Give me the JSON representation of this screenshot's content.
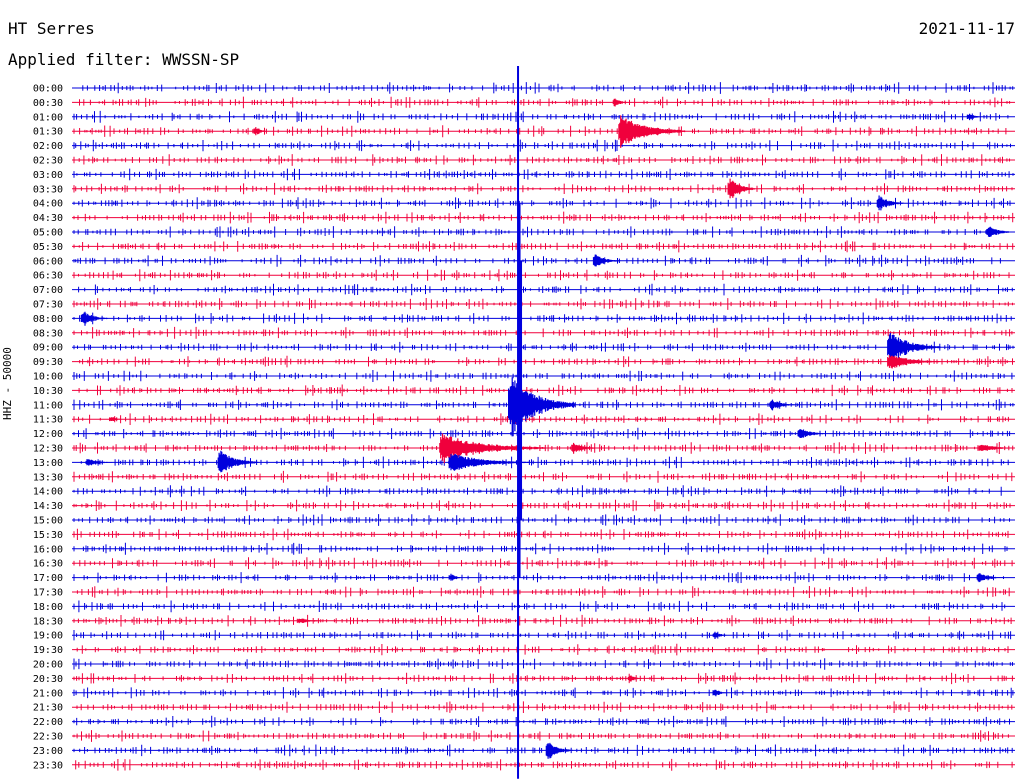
{
  "header": {
    "station": "HT Serres",
    "date": "2021-11-17",
    "filter": "Applied filter: WWSSN-SP"
  },
  "channel_label": "HHZ - 50000",
  "colors": {
    "trace_a": "#0000dd",
    "trace_b": "#f0003c",
    "text": "#000000"
  },
  "times": [
    "00:00",
    "00:30",
    "01:00",
    "01:30",
    "02:00",
    "02:30",
    "03:00",
    "03:30",
    "04:00",
    "04:30",
    "05:00",
    "05:30",
    "06:00",
    "06:30",
    "07:00",
    "07:30",
    "08:00",
    "08:30",
    "09:00",
    "09:30",
    "10:00",
    "10:30",
    "11:00",
    "11:30",
    "12:00",
    "12:30",
    "13:00",
    "13:30",
    "14:00",
    "14:30",
    "15:00",
    "15:30",
    "16:00",
    "16:30",
    "17:00",
    "17:30",
    "18:00",
    "18:30",
    "19:00",
    "19:30",
    "20:00",
    "20:30",
    "21:00",
    "21:30",
    "22:00",
    "22:30",
    "23:00",
    "23:30"
  ],
  "events": [
    {
      "row": 1,
      "t": 0.574,
      "amp": 0.8,
      "dur": 0.01
    },
    {
      "row": 3,
      "t": 0.58,
      "amp": 2.7,
      "dur": 0.05
    },
    {
      "row": 3,
      "t": 0.193,
      "amp": 0.7,
      "dur": 0.01
    },
    {
      "row": 2,
      "t": 0.95,
      "amp": 0.6,
      "dur": 0.01
    },
    {
      "row": 7,
      "t": 0.696,
      "amp": 1.9,
      "dur": 0.02
    },
    {
      "row": 8,
      "t": 0.854,
      "amp": 1.3,
      "dur": 0.02
    },
    {
      "row": 10,
      "t": 0.97,
      "amp": 1.0,
      "dur": 0.02
    },
    {
      "row": 12,
      "t": 0.553,
      "amp": 1.1,
      "dur": 0.02
    },
    {
      "row": 16,
      "t": 0.01,
      "amp": 1.3,
      "dur": 0.02
    },
    {
      "row": 18,
      "t": 0.865,
      "amp": 2.6,
      "dur": 0.04
    },
    {
      "row": 19,
      "t": 0.865,
      "amp": 1.3,
      "dur": 0.04
    },
    {
      "row": 22,
      "t": 0.463,
      "amp": 5.0,
      "dur": 0.05
    },
    {
      "row": 22,
      "t": 0.74,
      "amp": 0.9,
      "dur": 0.02
    },
    {
      "row": 23,
      "t": 0.04,
      "amp": 0.5,
      "dur": 0.01
    },
    {
      "row": 24,
      "t": 0.77,
      "amp": 1.0,
      "dur": 0.02
    },
    {
      "row": 25,
      "t": 0.39,
      "amp": 2.4,
      "dur": 0.08
    },
    {
      "row": 25,
      "t": 0.53,
      "amp": 0.9,
      "dur": 0.02
    },
    {
      "row": 25,
      "t": 0.962,
      "amp": 0.7,
      "dur": 0.03
    },
    {
      "row": 26,
      "t": 0.155,
      "amp": 2.0,
      "dur": 0.03
    },
    {
      "row": 26,
      "t": 0.015,
      "amp": 0.7,
      "dur": 0.02
    },
    {
      "row": 26,
      "t": 0.4,
      "amp": 1.6,
      "dur": 0.06
    },
    {
      "row": 34,
      "t": 0.4,
      "amp": 0.7,
      "dur": 0.01
    },
    {
      "row": 34,
      "t": 0.96,
      "amp": 0.8,
      "dur": 0.02
    },
    {
      "row": 37,
      "t": 0.24,
      "amp": 0.5,
      "dur": 0.02
    },
    {
      "row": 38,
      "t": 0.68,
      "amp": 0.6,
      "dur": 0.01
    },
    {
      "row": 41,
      "t": 0.59,
      "amp": 0.6,
      "dur": 0.01
    },
    {
      "row": 42,
      "t": 0.68,
      "amp": 0.7,
      "dur": 0.01
    },
    {
      "row": 46,
      "t": 0.503,
      "amp": 1.5,
      "dur": 0.02
    }
  ],
  "disturbance": {
    "t": 0.473,
    "rows": [
      0,
      47
    ],
    "amp": 0.9
  }
}
